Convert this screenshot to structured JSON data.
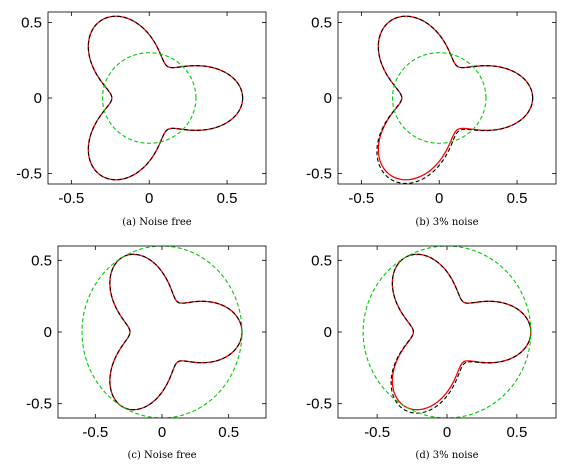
{
  "chart_data": [
    {
      "type": "line",
      "caption": "(a) Noise free",
      "xlim": [
        -0.65,
        0.75
      ],
      "ylim": [
        -0.57,
        0.57
      ],
      "xticks": [
        -0.5,
        0,
        0.5
      ],
      "xtick_labels": [
        "-0.5",
        "0",
        "0.5"
      ],
      "yticks": [
        -0.5,
        0,
        0.5
      ],
      "ytick_labels": [
        "-0.5",
        "0",
        "0.5"
      ],
      "grid": false,
      "curves": [
        {
          "style": "red-solid",
          "shape": "three-lobed boundary",
          "r0": 0.42,
          "amp": 0.18,
          "k": 3,
          "noise": 0
        },
        {
          "style": "black-dashed",
          "shape": "three-lobed boundary",
          "r0": 0.42,
          "amp": 0.18,
          "k": 3,
          "noise": 0
        },
        {
          "style": "green-dashed",
          "shape": "circle",
          "center": [
            0,
            0
          ],
          "radius": 0.3
        }
      ]
    },
    {
      "type": "line",
      "caption": "(b) 3% noise",
      "xlim": [
        -0.65,
        0.75
      ],
      "ylim": [
        -0.57,
        0.57
      ],
      "xticks": [
        -0.5,
        0,
        0.5
      ],
      "xtick_labels": [
        "-0.5",
        "0",
        "0.5"
      ],
      "yticks": [
        -0.5,
        0,
        0.5
      ],
      "ytick_labels": [
        "-0.5",
        "0",
        "0.5"
      ],
      "grid": false,
      "curves": [
        {
          "style": "red-solid",
          "shape": "three-lobed boundary",
          "r0": 0.42,
          "amp": 0.18,
          "k": 3,
          "noise": 0
        },
        {
          "style": "black-dashed",
          "shape": "three-lobed boundary",
          "r0": 0.42,
          "amp": 0.18,
          "k": 3,
          "noise": 0.03
        },
        {
          "style": "green-dashed",
          "shape": "circle",
          "center": [
            0,
            0
          ],
          "radius": 0.3
        }
      ]
    },
    {
      "type": "line",
      "caption": "(c) Noise free",
      "xlim": [
        -0.78,
        0.78
      ],
      "ylim": [
        -0.6,
        0.6
      ],
      "xticks": [
        -0.5,
        0,
        0.5
      ],
      "xtick_labels": [
        "-0.5",
        "0",
        "0.5"
      ],
      "yticks": [
        -0.5,
        0,
        0.5
      ],
      "ytick_labels": [
        "-0.5",
        "0",
        "0.5"
      ],
      "grid": false,
      "curves": [
        {
          "style": "red-solid",
          "shape": "three-lobed boundary",
          "r0": 0.42,
          "amp": 0.18,
          "k": 3,
          "noise": 0
        },
        {
          "style": "black-dashed",
          "shape": "three-lobed boundary",
          "r0": 0.42,
          "amp": 0.18,
          "k": 3,
          "noise": 0
        },
        {
          "style": "green-dashed",
          "shape": "circle",
          "center": [
            0,
            0
          ],
          "radius": 0.6
        }
      ]
    },
    {
      "type": "line",
      "caption": "(d) 3% noise",
      "xlim": [
        -0.78,
        0.78
      ],
      "ylim": [
        -0.6,
        0.6
      ],
      "xticks": [
        -0.5,
        0,
        0.5
      ],
      "xtick_labels": [
        "-0.5",
        "0",
        "0.5"
      ],
      "yticks": [
        -0.5,
        0,
        0.5
      ],
      "ytick_labels": [
        "-0.5",
        "0",
        "0.5"
      ],
      "grid": false,
      "curves": [
        {
          "style": "red-solid",
          "shape": "three-lobed boundary",
          "r0": 0.42,
          "amp": 0.18,
          "k": 3,
          "noise": 0
        },
        {
          "style": "black-dashed",
          "shape": "three-lobed boundary",
          "r0": 0.42,
          "amp": 0.18,
          "k": 3,
          "noise": 0.03
        },
        {
          "style": "green-dashed",
          "shape": "circle",
          "center": [
            0,
            0
          ],
          "radius": 0.6
        }
      ]
    }
  ],
  "colors": {
    "red": "#ff0000",
    "black": "#000000",
    "green": "#00cc00"
  }
}
